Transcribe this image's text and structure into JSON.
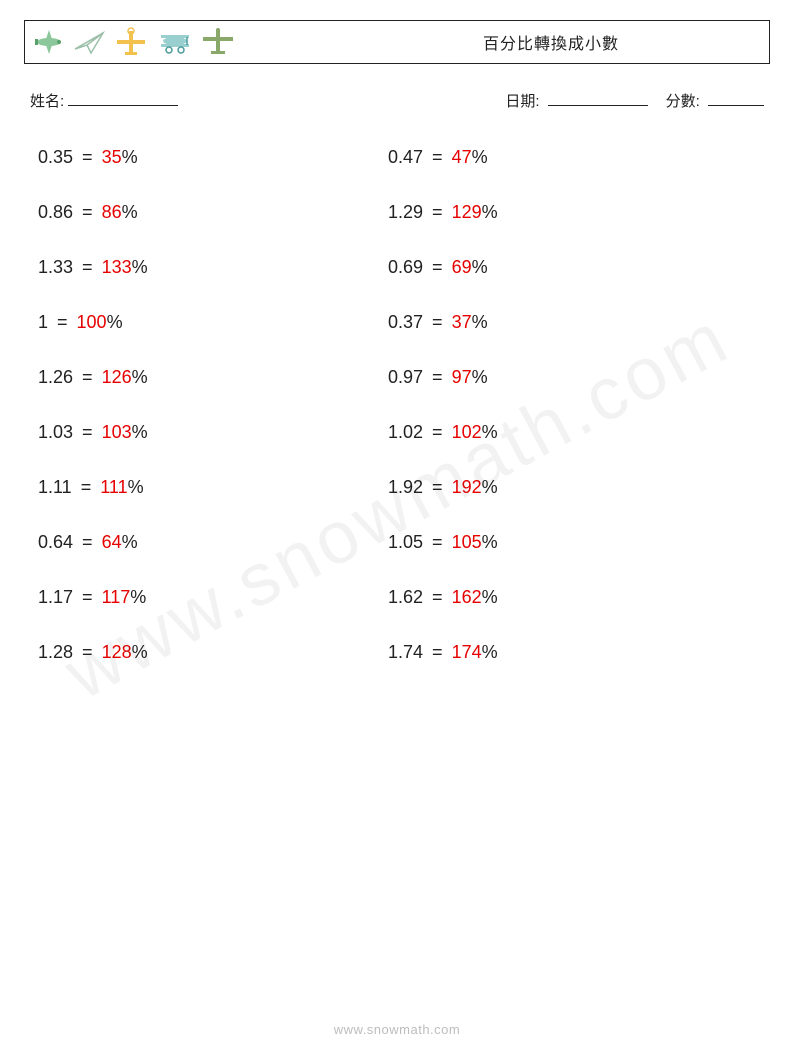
{
  "header": {
    "title": "百分比轉換成小數"
  },
  "info": {
    "name_label": "姓名:",
    "date_label": "日期:",
    "score_label": "分數:"
  },
  "answer_color": "#e60000",
  "text_color": "#222222",
  "problems": {
    "left": [
      {
        "decimal": "0.35",
        "answer": "35"
      },
      {
        "decimal": "0.86",
        "answer": "86"
      },
      {
        "decimal": "1.33",
        "answer": "133"
      },
      {
        "decimal": "1",
        "answer": "100"
      },
      {
        "decimal": "1.26",
        "answer": "126"
      },
      {
        "decimal": "1.03",
        "answer": "103"
      },
      {
        "decimal": "1.11",
        "answer": "111"
      },
      {
        "decimal": "0.64",
        "answer": "64"
      },
      {
        "decimal": "1.17",
        "answer": "117"
      },
      {
        "decimal": "1.28",
        "answer": "128"
      }
    ],
    "right": [
      {
        "decimal": "0.47",
        "answer": "47"
      },
      {
        "decimal": "1.29",
        "answer": "129"
      },
      {
        "decimal": "0.69",
        "answer": "69"
      },
      {
        "decimal": "0.37",
        "answer": "37"
      },
      {
        "decimal": "0.97",
        "answer": "97"
      },
      {
        "decimal": "1.02",
        "answer": "102"
      },
      {
        "decimal": "1.92",
        "answer": "192"
      },
      {
        "decimal": "1.05",
        "answer": "105"
      },
      {
        "decimal": "1.62",
        "answer": "162"
      },
      {
        "decimal": "1.74",
        "answer": "174"
      }
    ]
  },
  "percent_symbol": "%",
  "equals_symbol": " = ",
  "watermark": "www.snowmath.com",
  "footer": "www.snowmath.com",
  "icon_colors": {
    "green": "#8bc79a",
    "green_dark": "#5aa06a",
    "paper_plane": "#9bbfa8",
    "yellow": "#f2c14e",
    "teal": "#9acfcf",
    "teal_dark": "#4a9a9a",
    "olive": "#8aa86a"
  }
}
